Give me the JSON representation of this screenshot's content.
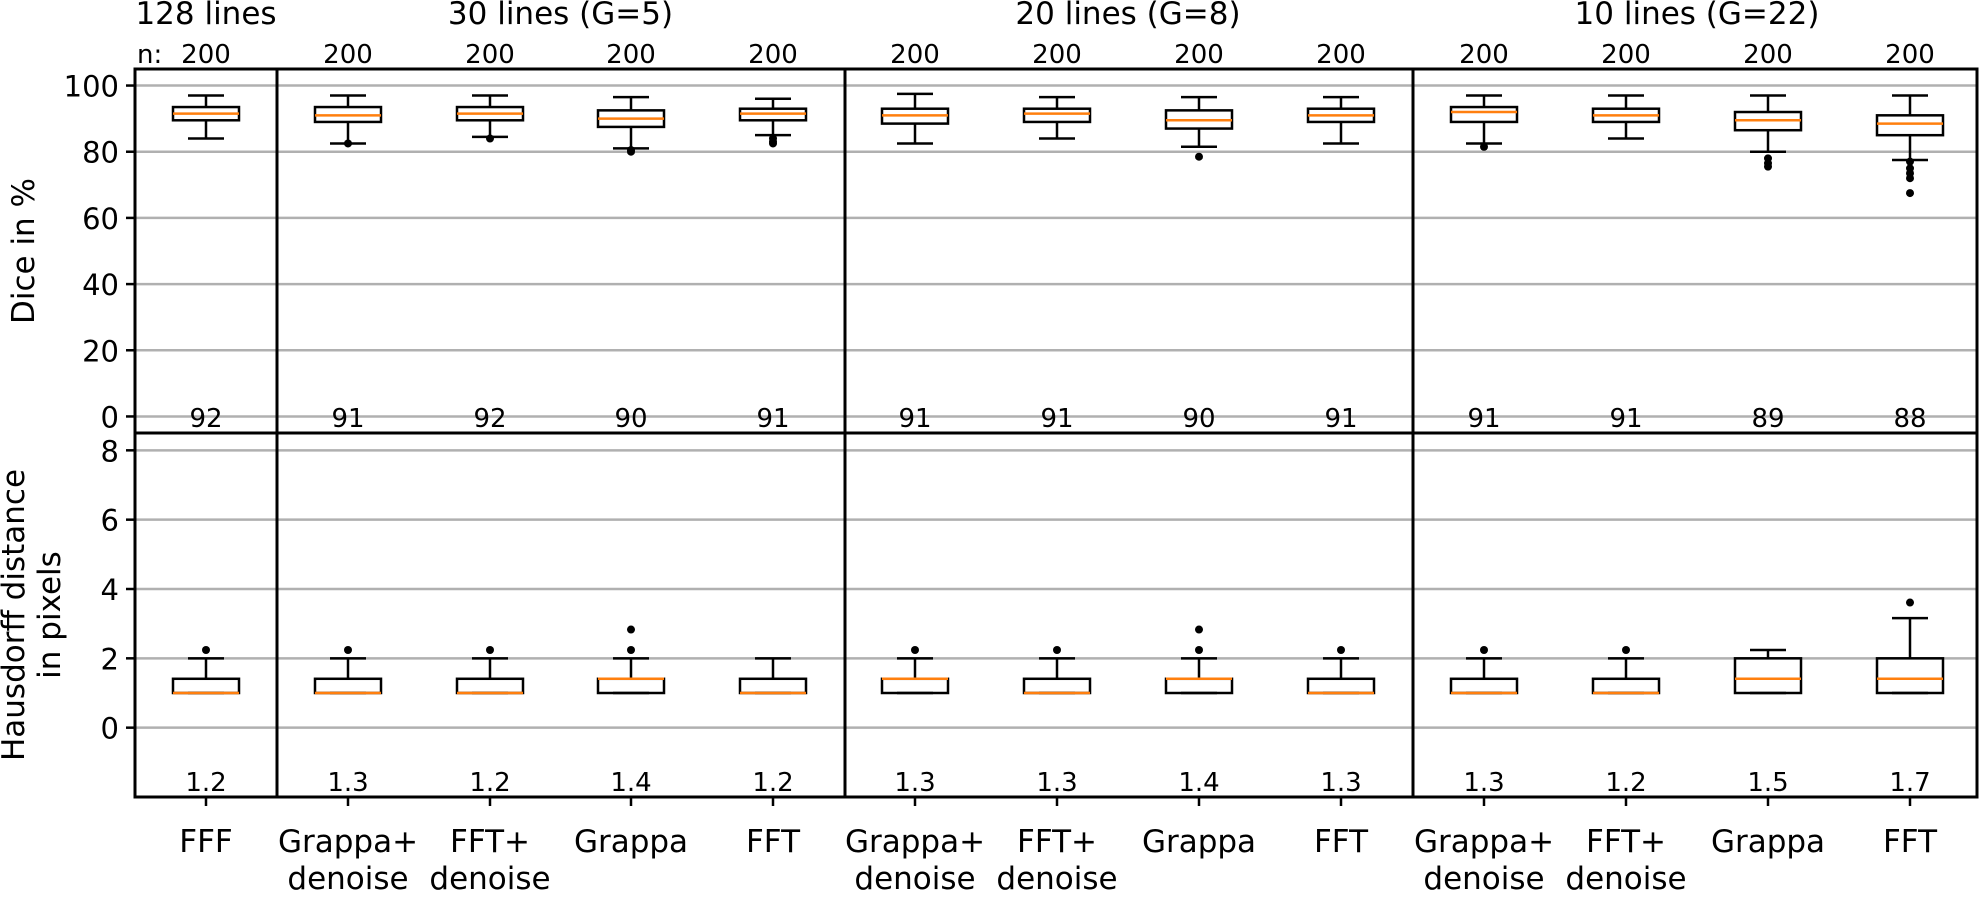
{
  "chart_data": {
    "type": "boxplot",
    "colors": {
      "median": "#ff7f0e",
      "box": "#000000",
      "grid": "#b0b0b0"
    },
    "groups": [
      {
        "title": "128 lines",
        "start": 0,
        "count": 1
      },
      {
        "title": "30 lines (G=5)",
        "start": 1,
        "count": 4
      },
      {
        "title": "20 lines (G=8)",
        "start": 5,
        "count": 4
      },
      {
        "title": "10 lines (G=22)",
        "start": 9,
        "count": 4
      }
    ],
    "n_label": "n:",
    "categories": [
      [
        "FFF"
      ],
      [
        "Grappa+",
        "denoise"
      ],
      [
        "FFT+",
        "denoise"
      ],
      [
        "Grappa"
      ],
      [
        "FFT"
      ],
      [
        "Grappa+",
        "denoise"
      ],
      [
        "FFT+",
        "denoise"
      ],
      [
        "Grappa"
      ],
      [
        "FFT"
      ],
      [
        "Grappa+",
        "denoise"
      ],
      [
        "FFT+",
        "denoise"
      ],
      [
        "Grappa"
      ],
      [
        "FFT"
      ]
    ],
    "n": [
      "200",
      "200",
      "200",
      "200",
      "200",
      "200",
      "200",
      "200",
      "200",
      "200",
      "200",
      "200",
      "200"
    ],
    "panels": [
      {
        "ylabel": [
          "Dice in %"
        ],
        "ylim": [
          -5,
          105
        ],
        "yticks": [
          0,
          20,
          40,
          60,
          80,
          100
        ],
        "grid": true,
        "means": [
          "92",
          "91",
          "92",
          "90",
          "91",
          "91",
          "91",
          "90",
          "91",
          "91",
          "91",
          "89",
          "88"
        ],
        "boxes": [
          {
            "wlo": 84,
            "q1": 89.5,
            "med": 91.5,
            "q3": 93.5,
            "whi": 97,
            "fliers": []
          },
          {
            "wlo": 82.5,
            "q1": 89,
            "med": 91,
            "q3": 93.5,
            "whi": 97,
            "fliers": [
              82.5
            ]
          },
          {
            "wlo": 84.5,
            "q1": 89.5,
            "med": 91.5,
            "q3": 93.5,
            "whi": 97,
            "fliers": [
              84
            ]
          },
          {
            "wlo": 81,
            "q1": 87.5,
            "med": 90,
            "q3": 92.5,
            "whi": 96.5,
            "fliers": [
              80.5,
              80
            ]
          },
          {
            "wlo": 85,
            "q1": 89.5,
            "med": 91.5,
            "q3": 93,
            "whi": 96,
            "fliers": [
              84,
              83,
              82.5
            ]
          },
          {
            "wlo": 82.5,
            "q1": 88.5,
            "med": 91,
            "q3": 93,
            "whi": 97.5,
            "fliers": []
          },
          {
            "wlo": 84,
            "q1": 89,
            "med": 91.5,
            "q3": 93,
            "whi": 96.5,
            "fliers": []
          },
          {
            "wlo": 81.5,
            "q1": 87,
            "med": 89.5,
            "q3": 92.5,
            "whi": 96.5,
            "fliers": [
              78.5
            ]
          },
          {
            "wlo": 82.5,
            "q1": 89,
            "med": 91,
            "q3": 93,
            "whi": 96.5,
            "fliers": []
          },
          {
            "wlo": 82.5,
            "q1": 89,
            "med": 92,
            "q3": 93.5,
            "whi": 97,
            "fliers": [
              81.5
            ]
          },
          {
            "wlo": 84,
            "q1": 89,
            "med": 91,
            "q3": 93,
            "whi": 97,
            "fliers": []
          },
          {
            "wlo": 80,
            "q1": 86.5,
            "med": 89.5,
            "q3": 92,
            "whi": 97,
            "fliers": [
              78,
              76.5,
              75.5
            ]
          },
          {
            "wlo": 77.5,
            "q1": 85,
            "med": 88.5,
            "q3": 91,
            "whi": 97,
            "fliers": [
              77,
              75,
              73.5,
              72,
              67.5
            ]
          }
        ]
      },
      {
        "ylabel": [
          "Hausdorff distance",
          "in pixels"
        ],
        "ylim": [
          -2,
          8.5
        ],
        "yticks": [
          0,
          2,
          4,
          6,
          8
        ],
        "grid": true,
        "means": [
          "1.2",
          "1.3",
          "1.2",
          "1.4",
          "1.2",
          "1.3",
          "1.3",
          "1.4",
          "1.3",
          "1.3",
          "1.2",
          "1.5",
          "1.7"
        ],
        "boxes": [
          {
            "wlo": 1,
            "q1": 1,
            "med": 1,
            "q3": 1.41,
            "whi": 2,
            "fliers": [
              2.24
            ]
          },
          {
            "wlo": 1,
            "q1": 1,
            "med": 1,
            "q3": 1.41,
            "whi": 2,
            "fliers": [
              2.24
            ]
          },
          {
            "wlo": 1,
            "q1": 1,
            "med": 1,
            "q3": 1.41,
            "whi": 2,
            "fliers": [
              2.24
            ]
          },
          {
            "wlo": 1,
            "q1": 1,
            "med": 1.41,
            "q3": 1.41,
            "whi": 2,
            "fliers": [
              2.24,
              2.83
            ]
          },
          {
            "wlo": 1,
            "q1": 1,
            "med": 1,
            "q3": 1.41,
            "whi": 2,
            "fliers": []
          },
          {
            "wlo": 1,
            "q1": 1,
            "med": 1.41,
            "q3": 1.41,
            "whi": 2,
            "fliers": [
              2.24
            ]
          },
          {
            "wlo": 1,
            "q1": 1,
            "med": 1,
            "q3": 1.41,
            "whi": 2,
            "fliers": [
              2.24
            ]
          },
          {
            "wlo": 1,
            "q1": 1,
            "med": 1.41,
            "q3": 1.41,
            "whi": 2,
            "fliers": [
              2.24,
              2.83
            ]
          },
          {
            "wlo": 1,
            "q1": 1,
            "med": 1,
            "q3": 1.41,
            "whi": 2,
            "fliers": [
              2.24
            ]
          },
          {
            "wlo": 1,
            "q1": 1,
            "med": 1,
            "q3": 1.41,
            "whi": 2,
            "fliers": [
              2.24
            ]
          },
          {
            "wlo": 1,
            "q1": 1,
            "med": 1,
            "q3": 1.41,
            "whi": 2,
            "fliers": [
              2.24
            ]
          },
          {
            "wlo": 1,
            "q1": 1,
            "med": 1.41,
            "q3": 2,
            "whi": 2.24,
            "fliers": []
          },
          {
            "wlo": 1,
            "q1": 1,
            "med": 1.41,
            "q3": 2,
            "whi": 3.16,
            "fliers": [
              3.61
            ]
          }
        ]
      }
    ]
  }
}
